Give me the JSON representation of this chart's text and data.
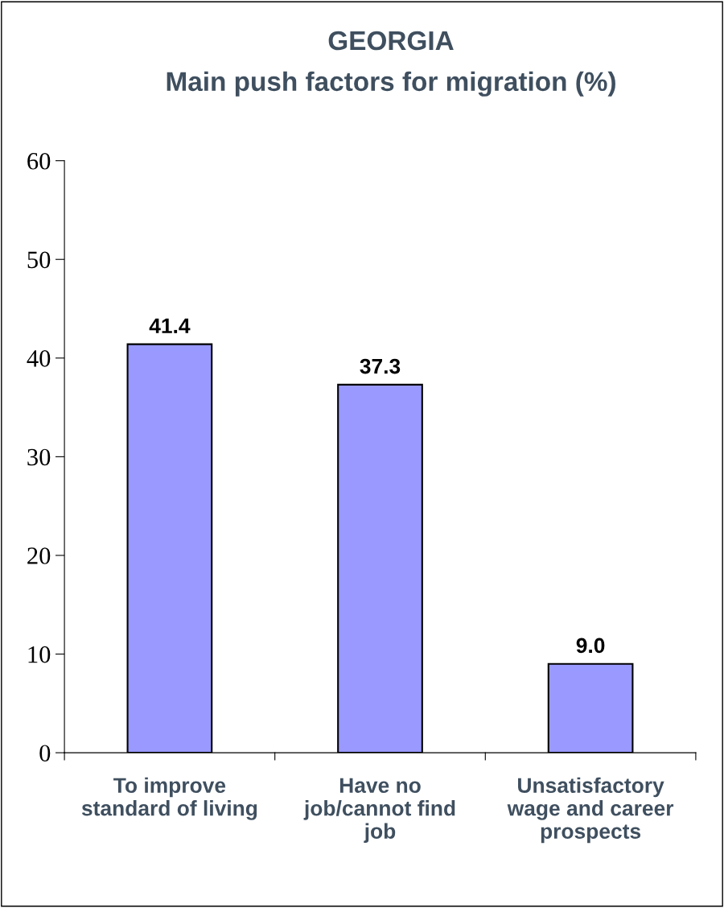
{
  "chart_data": {
    "type": "bar",
    "title": "GEORGIA",
    "subtitle": "Main push factors for migration (%)",
    "categories": [
      "To improve\nstandard of living",
      "Have no\njob/cannot find\njob",
      "Unsatisfactory\nwage and career\nprospects"
    ],
    "values": [
      41.4,
      37.3,
      9.0
    ],
    "value_labels": [
      "41.4",
      "37.3",
      "9.0"
    ],
    "color": "#9999ff",
    "ylim": [
      0,
      60
    ],
    "yticks": [
      0,
      10,
      20,
      30,
      40,
      50,
      60
    ],
    "grid": false,
    "legend": false
  }
}
